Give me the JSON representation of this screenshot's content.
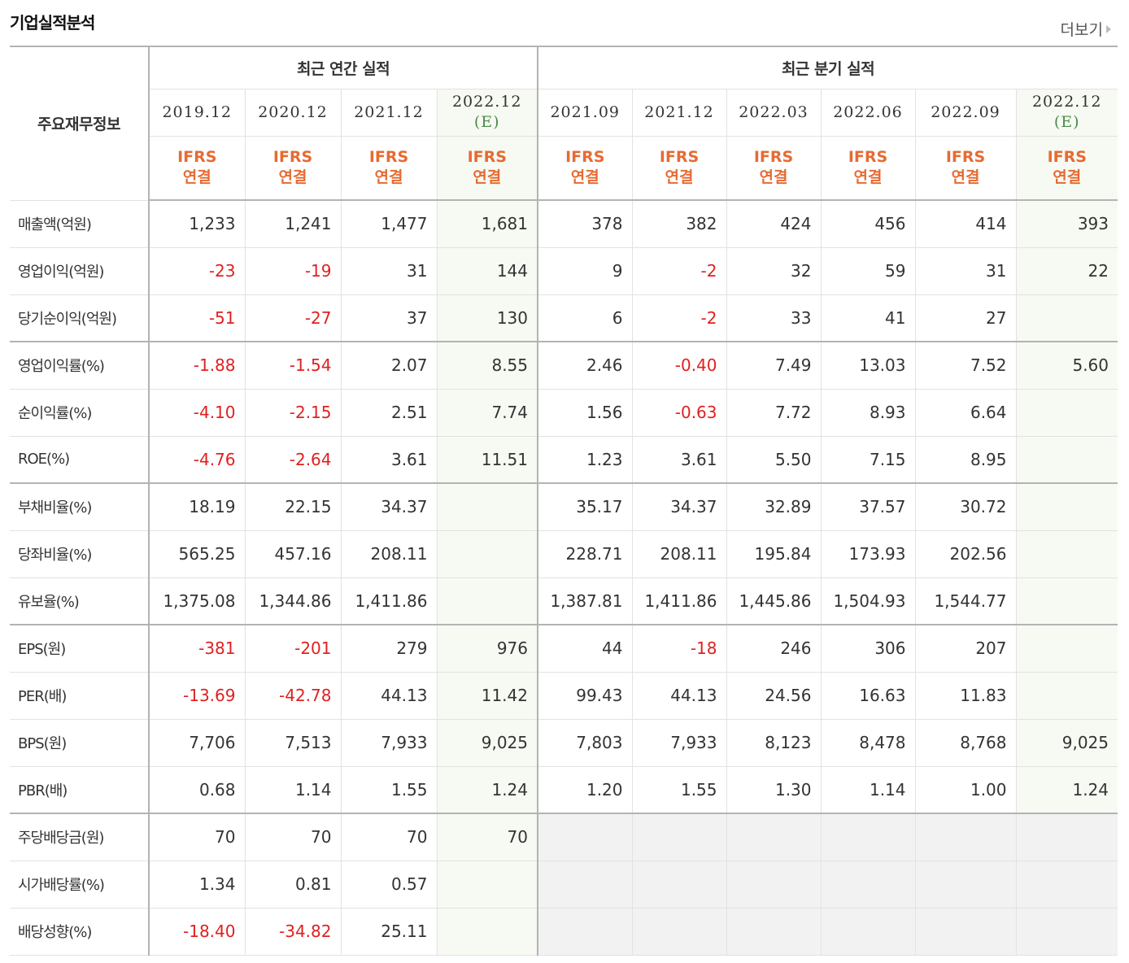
{
  "header": {
    "title": "기업실적분석",
    "more_label": "더보기"
  },
  "table": {
    "corner_label": "주요재무정보",
    "group_annual": "최근 연간 실적",
    "group_quarter": "최근 분기 실적",
    "annual_periods": [
      "2019.12",
      "2020.12",
      "2021.12",
      "2022.12"
    ],
    "quarter_periods": [
      "2021.09",
      "2021.12",
      "2022.03",
      "2022.06",
      "2022.09",
      "2022.12"
    ],
    "estimate_mark": "(E)",
    "basis_line1": "IFRS",
    "basis_line2": "연결",
    "rows": [
      {
        "label": "매출액(억원)",
        "values": [
          "1,233",
          "1,241",
          "1,477",
          "1,681",
          "378",
          "382",
          "424",
          "456",
          "414",
          "393"
        ]
      },
      {
        "label": "영업이익(억원)",
        "values": [
          "-23",
          "-19",
          "31",
          "144",
          "9",
          "-2",
          "32",
          "59",
          "31",
          "22"
        ]
      },
      {
        "label": "당기순이익(억원)",
        "values": [
          "-51",
          "-27",
          "37",
          "130",
          "6",
          "-2",
          "33",
          "41",
          "27",
          ""
        ]
      },
      {
        "label": "영업이익률(%)",
        "values": [
          "-1.88",
          "-1.54",
          "2.07",
          "8.55",
          "2.46",
          "-0.40",
          "7.49",
          "13.03",
          "7.52",
          "5.60"
        ]
      },
      {
        "label": "순이익률(%)",
        "values": [
          "-4.10",
          "-2.15",
          "2.51",
          "7.74",
          "1.56",
          "-0.63",
          "7.72",
          "8.93",
          "6.64",
          ""
        ]
      },
      {
        "label": "ROE(%)",
        "values": [
          "-4.76",
          "-2.64",
          "3.61",
          "11.51",
          "1.23",
          "3.61",
          "5.50",
          "7.15",
          "8.95",
          ""
        ]
      },
      {
        "label": "부채비율(%)",
        "values": [
          "18.19",
          "22.15",
          "34.37",
          "",
          "35.17",
          "34.37",
          "32.89",
          "37.57",
          "30.72",
          ""
        ]
      },
      {
        "label": "당좌비율(%)",
        "values": [
          "565.25",
          "457.16",
          "208.11",
          "",
          "228.71",
          "208.11",
          "195.84",
          "173.93",
          "202.56",
          ""
        ]
      },
      {
        "label": "유보율(%)",
        "values": [
          "1,375.08",
          "1,344.86",
          "1,411.86",
          "",
          "1,387.81",
          "1,411.86",
          "1,445.86",
          "1,504.93",
          "1,544.77",
          ""
        ]
      },
      {
        "label": "EPS(원)",
        "values": [
          "-381",
          "-201",
          "279",
          "976",
          "44",
          "-18",
          "246",
          "306",
          "207",
          ""
        ]
      },
      {
        "label": "PER(배)",
        "values": [
          "-13.69",
          "-42.78",
          "44.13",
          "11.42",
          "99.43",
          "44.13",
          "24.56",
          "16.63",
          "11.83",
          ""
        ]
      },
      {
        "label": "BPS(원)",
        "values": [
          "7,706",
          "7,513",
          "7,933",
          "9,025",
          "7,803",
          "7,933",
          "8,123",
          "8,478",
          "8,768",
          "9,025"
        ]
      },
      {
        "label": "PBR(배)",
        "values": [
          "0.68",
          "1.14",
          "1.55",
          "1.24",
          "1.20",
          "1.55",
          "1.30",
          "1.14",
          "1.00",
          "1.24"
        ]
      },
      {
        "label": "주당배당금(원)",
        "values": [
          "70",
          "70",
          "70",
          "70",
          "",
          "",
          "",
          "",
          "",
          ""
        ]
      },
      {
        "label": "시가배당률(%)",
        "values": [
          "1.34",
          "0.81",
          "0.57",
          "",
          "",
          "",
          "",
          "",
          "",
          ""
        ]
      },
      {
        "label": "배당성향(%)",
        "values": [
          "-18.40",
          "-34.82",
          "25.11",
          "",
          "",
          "",
          "",
          "",
          "",
          ""
        ]
      }
    ]
  }
}
